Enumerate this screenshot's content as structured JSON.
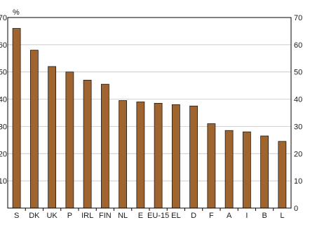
{
  "chart_data": {
    "type": "bar",
    "title": "",
    "xlabel": "",
    "ylabel": "%",
    "ylim": [
      0,
      70
    ],
    "yticks": [
      0,
      10,
      20,
      30,
      40,
      50,
      60,
      70
    ],
    "grid": true,
    "categories": [
      "S",
      "DK",
      "UK",
      "P",
      "IRL",
      "FIN",
      "NL",
      "E",
      "EU-15",
      "EL",
      "D",
      "F",
      "A",
      "I",
      "B",
      "L"
    ],
    "values": [
      66,
      58,
      52,
      50,
      47,
      45.5,
      39.5,
      39,
      38.5,
      38,
      37.5,
      31,
      28.5,
      28,
      26.5,
      24.5
    ],
    "colors": {
      "bar": "#a0652e",
      "bar_edge": "#1a1a1a",
      "grid": "#bbbbbb",
      "axis": "#000000"
    }
  }
}
